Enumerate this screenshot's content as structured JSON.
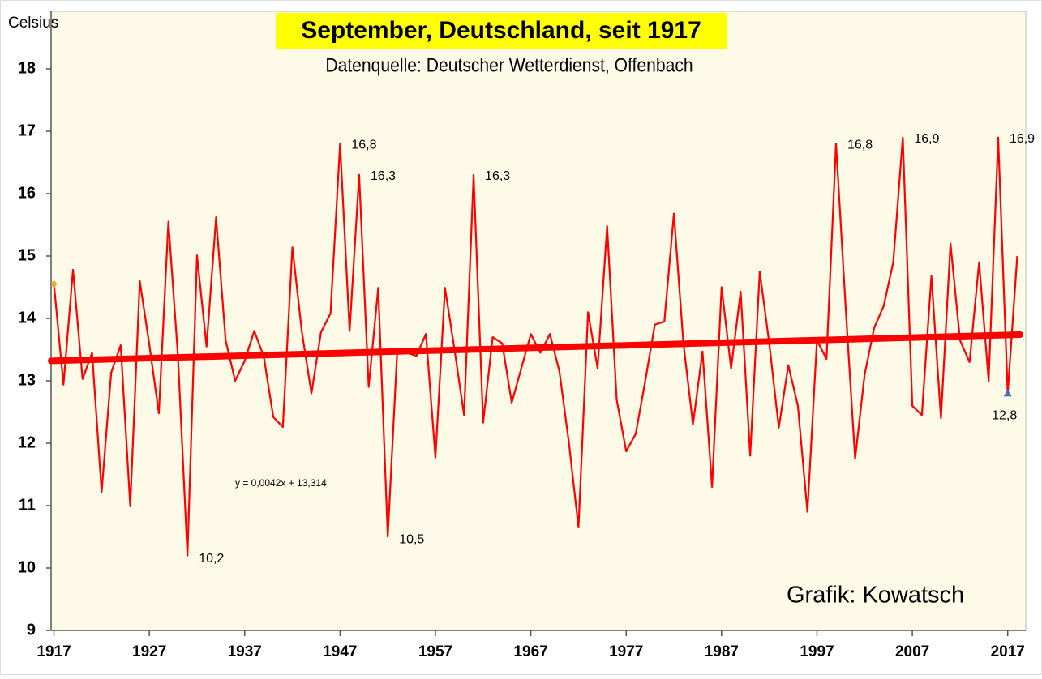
{
  "chart_data": {
    "type": "line",
    "title": "September, Deutschland, seit 1917",
    "subtitle": "Datenquelle: Deutscher Wetterdienst, Offenbach",
    "y_label": "Celsius",
    "credit": "Grafik: Kowatsch",
    "x": [
      1917,
      1918,
      1919,
      1920,
      1921,
      1922,
      1923,
      1924,
      1925,
      1926,
      1927,
      1928,
      1929,
      1930,
      1931,
      1932,
      1933,
      1934,
      1935,
      1936,
      1937,
      1938,
      1939,
      1940,
      1941,
      1942,
      1943,
      1944,
      1945,
      1946,
      1947,
      1948,
      1949,
      1950,
      1951,
      1952,
      1953,
      1954,
      1955,
      1956,
      1957,
      1958,
      1959,
      1960,
      1961,
      1962,
      1963,
      1964,
      1965,
      1966,
      1967,
      1968,
      1969,
      1970,
      1971,
      1972,
      1973,
      1974,
      1975,
      1976,
      1977,
      1978,
      1979,
      1980,
      1981,
      1982,
      1983,
      1984,
      1985,
      1986,
      1987,
      1988,
      1989,
      1990,
      1991,
      1992,
      1993,
      1994,
      1995,
      1996,
      1997,
      1998,
      1999,
      2000,
      2001,
      2002,
      2003,
      2004,
      2005,
      2006,
      2007,
      2008,
      2009,
      2010,
      2011,
      2012,
      2013,
      2014,
      2015,
      2016,
      2017,
      2018
    ],
    "series": [
      {
        "name": "September",
        "color": "#ff0000",
        "values": [
          14.55,
          12.94,
          14.78,
          13.03,
          13.45,
          11.22,
          13.13,
          13.57,
          10.99,
          14.6,
          13.58,
          12.48,
          15.55,
          13.4,
          10.2,
          15.01,
          13.55,
          15.62,
          13.65,
          13.0,
          13.32,
          13.8,
          13.39,
          12.42,
          12.26,
          15.14,
          13.78,
          12.8,
          13.78,
          14.08,
          16.8,
          13.8,
          16.3,
          12.9,
          14.49,
          10.5,
          13.5,
          13.45,
          13.4,
          13.75,
          11.77,
          14.49,
          13.5,
          12.45,
          16.3,
          12.33,
          13.7,
          13.6,
          12.65,
          13.2,
          13.75,
          13.45,
          13.75,
          13.15,
          12.0,
          10.65,
          14.1,
          13.2,
          15.48,
          12.7,
          11.87,
          12.15,
          13.0,
          13.9,
          13.95,
          15.68,
          13.6,
          12.3,
          13.47,
          11.3,
          14.5,
          13.2,
          14.43,
          11.8,
          14.75,
          13.6,
          12.25,
          13.25,
          12.6,
          10.9,
          13.65,
          13.35,
          16.8,
          14.2,
          11.75,
          13.1,
          13.85,
          14.2,
          14.9,
          16.9,
          12.6,
          12.45,
          14.68,
          12.4,
          15.2,
          13.65,
          13.3,
          14.9,
          13.0,
          16.9,
          12.8,
          15.0
        ],
        "value_labels": [
          null,
          null,
          null,
          null,
          null,
          null,
          null,
          null,
          null,
          null,
          null,
          null,
          null,
          null,
          "10,2",
          null,
          null,
          null,
          null,
          null,
          null,
          null,
          null,
          null,
          null,
          null,
          null,
          null,
          null,
          null,
          "16,8",
          null,
          "16,3",
          null,
          null,
          "10,5",
          null,
          null,
          null,
          null,
          null,
          null,
          null,
          null,
          "16,3",
          null,
          null,
          null,
          null,
          null,
          null,
          null,
          null,
          null,
          null,
          null,
          null,
          null,
          null,
          null,
          null,
          null,
          null,
          null,
          null,
          null,
          null,
          null,
          null,
          null,
          null,
          null,
          null,
          null,
          null,
          null,
          null,
          null,
          null,
          null,
          null,
          null,
          "16,8",
          null,
          null,
          null,
          null,
          null,
          null,
          "16,9",
          null,
          null,
          null,
          null,
          null,
          null,
          null,
          null,
          null,
          "16,9",
          "12,8",
          null
        ]
      }
    ],
    "trend": {
      "label": "y = 0,0042x + 13,314",
      "color": "#ff0000",
      "start": 13.32,
      "end": 13.74
    },
    "markers": [
      {
        "x": 1917,
        "color": "#f5a623",
        "shape": "diamond"
      },
      {
        "x": 2017,
        "color": "#4472c4",
        "shape": "triangle"
      }
    ],
    "xlim": [
      1916.7,
      2018.3
    ],
    "xticks": [
      1917,
      1927,
      1937,
      1947,
      1957,
      1967,
      1977,
      1987,
      1997,
      2007,
      2017
    ],
    "ylim": [
      9,
      18
    ],
    "yticks": [
      9,
      10,
      11,
      12,
      13,
      14,
      15,
      16,
      17,
      18
    ]
  }
}
